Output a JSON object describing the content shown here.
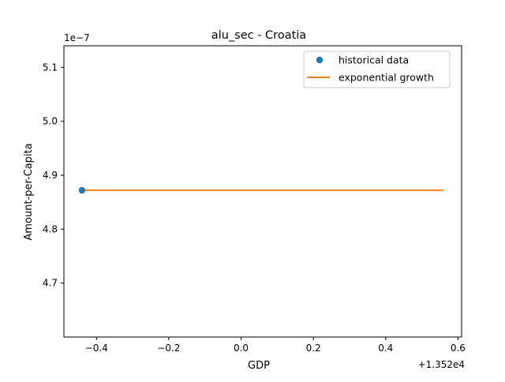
{
  "chart_data": {
    "type": "line",
    "title": "alu_sec - Croatia",
    "xlabel": "GDP",
    "ylabel": "Amount-per-Capita",
    "x_offset_label": "+1.352e4",
    "y_multiplier_label": "1e−7",
    "xlim": [
      -0.49,
      0.61
    ],
    "ylim": [
      4.6,
      5.14
    ],
    "x_ticks": [
      {
        "value": -0.4,
        "label": "−0.4"
      },
      {
        "value": -0.2,
        "label": "−0.2"
      },
      {
        "value": 0.0,
        "label": "0.0"
      },
      {
        "value": 0.2,
        "label": "0.2"
      },
      {
        "value": 0.4,
        "label": "0.4"
      },
      {
        "value": 0.6,
        "label": "0.6"
      }
    ],
    "y_ticks": [
      {
        "value": 4.7,
        "label": "4.7"
      },
      {
        "value": 4.8,
        "label": "4.8"
      },
      {
        "value": 4.9,
        "label": "4.9"
      },
      {
        "value": 5.0,
        "label": "5.0"
      },
      {
        "value": 5.1,
        "label": "5.1"
      }
    ],
    "series": [
      {
        "name": "historical data",
        "kind": "scatter",
        "color": "#1f77b4",
        "points": [
          {
            "x": -0.44,
            "y": 4.872
          }
        ]
      },
      {
        "name": "exponential growth",
        "kind": "line",
        "color": "#ff7f0e",
        "points": [
          {
            "x": -0.44,
            "y": 4.872
          },
          {
            "x": 0.56,
            "y": 4.872
          }
        ]
      }
    ],
    "legend": {
      "position": "top-right"
    },
    "grid": false
  }
}
